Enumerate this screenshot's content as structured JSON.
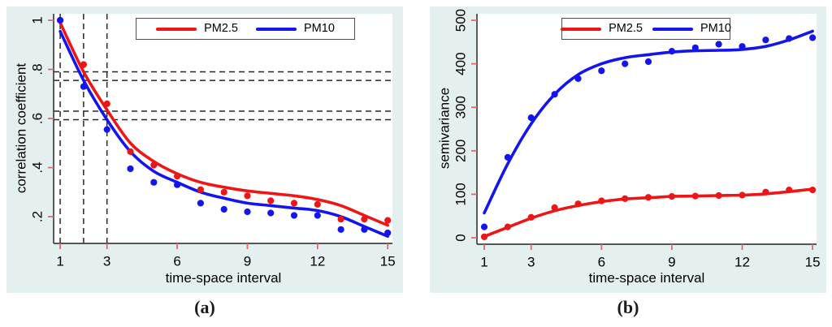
{
  "colors": {
    "panel_bg": "#e4efef",
    "plot_bg": "#ffffff",
    "axis": "#3f3f3f",
    "tick": "#e06a6a",
    "ref_line": "#262626",
    "legend_border": "#4c4c4c",
    "text": "#000000",
    "pm25": "#ed1515",
    "pm10": "#1414ee"
  },
  "captions": {
    "a": "(a)",
    "b": "(b)"
  },
  "chart_data": [
    {
      "id": "a",
      "type": "scatter",
      "title": "",
      "xlabel": "time-space interval",
      "ylabel": "correlation coefficient",
      "xlim": [
        0.72,
        15.2
      ],
      "ylim": [
        0.091,
        1.0265
      ],
      "grid": false,
      "legend_position": "top-center",
      "xticks": [
        {
          "v": 1,
          "label": "1"
        },
        {
          "v": 3,
          "label": "3"
        },
        {
          "v": 6,
          "label": "6"
        },
        {
          "v": 9,
          "label": "9"
        },
        {
          "v": 12,
          "label": "12"
        },
        {
          "v": 15,
          "label": "15"
        }
      ],
      "yticks": [
        {
          "v": 1.0,
          "label": "1"
        },
        {
          "v": 0.8,
          "label": ".8"
        },
        {
          "v": 0.6,
          "label": ".6"
        },
        {
          "v": 0.4,
          "label": ".4"
        },
        {
          "v": 0.2,
          "label": ".2"
        }
      ],
      "ref_lines": {
        "style": "dashed",
        "x": [
          1,
          2,
          3
        ],
        "y": [
          0.79,
          0.755,
          0.63,
          0.595
        ]
      },
      "series": [
        {
          "name": "PM2.5",
          "color_key": "pm25",
          "dots": [
            [
              1,
              1.0
            ],
            [
              2,
              0.82
            ],
            [
              3,
              0.66
            ],
            [
              4,
              0.465
            ],
            [
              5,
              0.41
            ],
            [
              6,
              0.365
            ],
            [
              7,
              0.31
            ],
            [
              8,
              0.3
            ],
            [
              9,
              0.285
            ],
            [
              10,
              0.265
            ],
            [
              11,
              0.255
            ],
            [
              12,
              0.25
            ],
            [
              13,
              0.19
            ],
            [
              14,
              0.19
            ],
            [
              15,
              0.185
            ]
          ],
          "smooth_line": [
            [
              1,
              0.99
            ],
            [
              2,
              0.79
            ],
            [
              3,
              0.635
            ],
            [
              4,
              0.5
            ],
            [
              5,
              0.425
            ],
            [
              6,
              0.375
            ],
            [
              7,
              0.34
            ],
            [
              8,
              0.32
            ],
            [
              9,
              0.305
            ],
            [
              10,
              0.295
            ],
            [
              11,
              0.285
            ],
            [
              12,
              0.27
            ],
            [
              13,
              0.245
            ],
            [
              14,
              0.205
            ],
            [
              15,
              0.165
            ]
          ]
        },
        {
          "name": "PM10",
          "color_key": "pm10",
          "dots": [
            [
              1,
              1.0
            ],
            [
              2,
              0.73
            ],
            [
              3,
              0.555
            ],
            [
              4,
              0.395
            ],
            [
              5,
              0.34
            ],
            [
              6,
              0.33
            ],
            [
              7,
              0.255
            ],
            [
              8,
              0.23
            ],
            [
              9,
              0.22
            ],
            [
              10,
              0.215
            ],
            [
              11,
              0.205
            ],
            [
              12,
              0.205
            ],
            [
              13,
              0.148
            ],
            [
              14,
              0.148
            ],
            [
              15,
              0.134
            ]
          ],
          "smooth_line": [
            [
              1,
              0.955
            ],
            [
              2,
              0.755
            ],
            [
              3,
              0.595
            ],
            [
              4,
              0.465
            ],
            [
              5,
              0.385
            ],
            [
              6,
              0.34
            ],
            [
              7,
              0.3
            ],
            [
              8,
              0.275
            ],
            [
              9,
              0.255
            ],
            [
              10,
              0.245
            ],
            [
              11,
              0.235
            ],
            [
              12,
              0.225
            ],
            [
              13,
              0.2
            ],
            [
              14,
              0.16
            ],
            [
              15,
              0.12
            ]
          ]
        }
      ]
    },
    {
      "id": "b",
      "type": "scatter",
      "title": "",
      "xlabel": "time-space interval",
      "ylabel": "semivariance",
      "xlim": [
        0.688,
        15.17
      ],
      "ylim": [
        -14.9,
        515
      ],
      "grid": false,
      "legend_position": "top-center",
      "xticks": [
        {
          "v": 1,
          "label": "1"
        },
        {
          "v": 3,
          "label": "3"
        },
        {
          "v": 6,
          "label": "6"
        },
        {
          "v": 9,
          "label": "9"
        },
        {
          "v": 12,
          "label": "12"
        },
        {
          "v": 15,
          "label": "15"
        }
      ],
      "yticks": [
        {
          "v": 0,
          "label": "0"
        },
        {
          "v": 100,
          "label": "100"
        },
        {
          "v": 200,
          "label": "200"
        },
        {
          "v": 300,
          "label": "300"
        },
        {
          "v": 400,
          "label": "400"
        },
        {
          "v": 500,
          "label": "500"
        }
      ],
      "ref_lines": {
        "style": "dashed",
        "x": [],
        "y": []
      },
      "series": [
        {
          "name": "PM2.5",
          "color_key": "pm25",
          "dots": [
            [
              1,
              2
            ],
            [
              2,
              25
            ],
            [
              3,
              47
            ],
            [
              4,
              69
            ],
            [
              5,
              78
            ],
            [
              6,
              85
            ],
            [
              7,
              90
            ],
            [
              8,
              93
            ],
            [
              9,
              95
            ],
            [
              10,
              96
            ],
            [
              11,
              97
            ],
            [
              12,
              98
            ],
            [
              13,
              105
            ],
            [
              14,
              110
            ],
            [
              15,
              110
            ]
          ],
          "smooth_line": [
            [
              1,
              3
            ],
            [
              2,
              24
            ],
            [
              3,
              45
            ],
            [
              4,
              62
            ],
            [
              5,
              74
            ],
            [
              6,
              83
            ],
            [
              7,
              89
            ],
            [
              8,
              92
            ],
            [
              9,
              95
            ],
            [
              10,
              96
            ],
            [
              11,
              97
            ],
            [
              12,
              98
            ],
            [
              13,
              101
            ],
            [
              14,
              106
            ],
            [
              15,
              112
            ]
          ]
        },
        {
          "name": "PM10",
          "color_key": "pm10",
          "dots": [
            [
              1,
              25
            ],
            [
              2,
              185
            ],
            [
              3,
              276
            ],
            [
              4,
              330
            ],
            [
              5,
              366
            ],
            [
              6,
              384
            ],
            [
              7,
              400
            ],
            [
              8,
              405
            ],
            [
              9,
              429
            ],
            [
              10,
              437
            ],
            [
              11,
              445
            ],
            [
              12,
              440
            ],
            [
              13,
              455
            ],
            [
              14,
              458
            ],
            [
              15,
              460
            ]
          ],
          "smooth_line": [
            [
              1,
              57
            ],
            [
              2,
              170
            ],
            [
              3,
              262
            ],
            [
              4,
              330
            ],
            [
              5,
              375
            ],
            [
              6,
              400
            ],
            [
              7,
              414
            ],
            [
              8,
              421
            ],
            [
              9,
              427
            ],
            [
              10,
              430
            ],
            [
              11,
              431
            ],
            [
              12,
              433
            ],
            [
              13,
              440
            ],
            [
              14,
              455
            ],
            [
              15,
              475
            ]
          ]
        }
      ]
    }
  ]
}
